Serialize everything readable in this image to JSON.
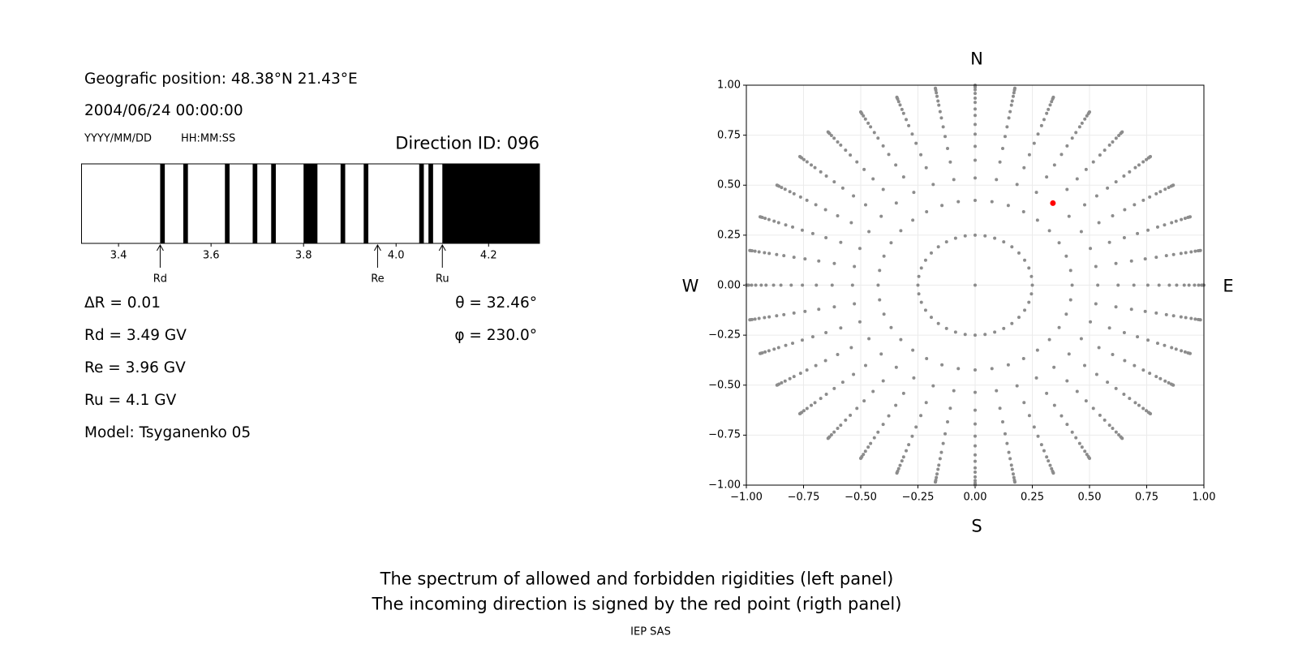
{
  "left_panel": {
    "position_label": "Geografic position: 48.38°N 21.43°E",
    "datetime": "2004/06/24 00:00:00",
    "date_format": "YYYY/MM/DD",
    "time_format": "HH:MM:SS",
    "direction_id": "Direction ID: 096",
    "delta_r": "ΔR = 0.01",
    "rd": "Rd = 3.49 GV",
    "re": "Re = 3.96 GV",
    "ru": "Ru = 4.1 GV",
    "model": "Model: Tsyganenko 05",
    "theta": "θ = 32.46°",
    "phi": "φ = 230.0°"
  },
  "right_panel": {
    "north": "N",
    "south": "S",
    "west": "W",
    "east": "E"
  },
  "caption": {
    "line1": "The spectrum of allowed and forbidden rigidities (left panel)",
    "line2": "The incoming direction is signed by the red point (rigth panel)",
    "credit": "IEP SAS"
  },
  "chart_data": [
    {
      "type": "bar",
      "xlim": [
        3.32,
        4.31
      ],
      "xticks": [
        "3.4",
        "3.6",
        "3.8",
        "4.0",
        "4.2"
      ],
      "forbidden_bands": [
        [
          3.49,
          3.5
        ],
        [
          3.54,
          3.55
        ],
        [
          3.63,
          3.64
        ],
        [
          3.69,
          3.7
        ],
        [
          3.73,
          3.74
        ],
        [
          3.8,
          3.83
        ],
        [
          3.88,
          3.89
        ],
        [
          3.93,
          3.94
        ],
        [
          4.05,
          4.06
        ],
        [
          4.07,
          4.08
        ],
        [
          4.1,
          4.31
        ]
      ],
      "band_color": "#000000",
      "allowed_color": "#ffffff",
      "markers": [
        {
          "label": "Rd",
          "value": 3.49
        },
        {
          "label": "Re",
          "value": 3.96
        },
        {
          "label": "Ru",
          "value": 4.1
        }
      ]
    },
    {
      "type": "scatter",
      "xlim": [
        -1,
        1
      ],
      "ylim": [
        -1,
        1
      ],
      "xticks": [
        "−1.00",
        "−0.75",
        "−0.50",
        "−0.25",
        "0.00",
        "0.25",
        "0.50",
        "0.75",
        "1.00"
      ],
      "yticks": [
        "−1.00",
        "−0.75",
        "−0.50",
        "−0.25",
        "0.00",
        "0.25",
        "0.50",
        "0.75",
        "1.00"
      ],
      "grid": true,
      "grid_points": {
        "color": "#8c8c8c",
        "center": [
          0,
          0
        ],
        "azimuth_step_deg": 10,
        "radii": [
          0.25,
          0.424,
          0.536,
          0.625,
          0.694,
          0.755,
          0.804,
          0.849,
          0.881,
          0.914,
          0.935,
          0.959,
          0.977,
          0.99,
          0.997,
          1.0
        ]
      },
      "direction_point": {
        "x": 0.34,
        "y": 0.41,
        "color": "#ff0000"
      }
    }
  ]
}
